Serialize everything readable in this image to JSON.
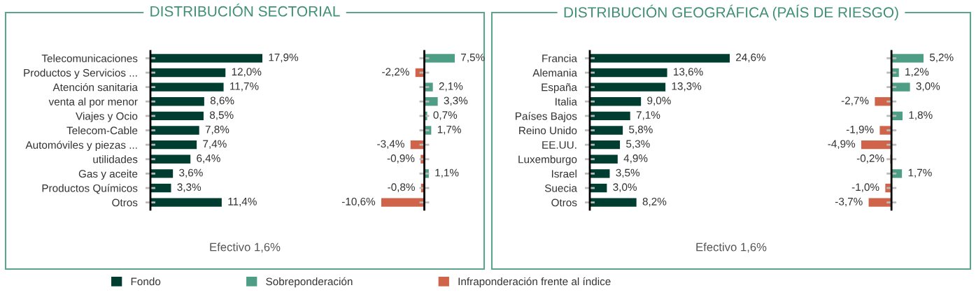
{
  "chart_data": [
    {
      "type": "bar",
      "orientation": "horizontal",
      "title": "DISTRIBUCIÓN SECTORIAL",
      "tick_labels": "y",
      "legend": "bottom",
      "annotations": [
        "Efectivo 1,6%"
      ],
      "categories": [
        "Telecomunicaciones",
        "Productos y Servicios ...",
        "Atención sanitaria",
        "venta al por menor",
        "Viajes y Ocio",
        "Telecom-Cable",
        "Automóviles y piezas ...",
        "utilidades",
        "Gas y aceite",
        "Productos Químicos",
        "Otros"
      ],
      "series": [
        {
          "name": "Fondo",
          "color": "#003d31",
          "values": [
            17.9,
            12.0,
            11.7,
            8.6,
            8.5,
            7.8,
            7.4,
            6.4,
            3.6,
            3.3,
            11.4
          ],
          "value_labels": [
            "17,9%",
            "12,0%",
            "11,7%",
            "8,6%",
            "8,5%",
            "7,8%",
            "7,4%",
            "6,4%",
            "3,6%",
            "3,3%",
            "11,4%"
          ]
        }
      ]
    },
    {
      "type": "bar",
      "orientation": "horizontal",
      "stacked": true,
      "tick_labels": false,
      "legend": "bottom",
      "categories": [
        null,
        null,
        null,
        null,
        null,
        null,
        null,
        null,
        null,
        null,
        null
      ],
      "series": [
        {
          "name": "Sobreponderación",
          "color": "#4e9e86",
          "values": [
            7.5,
            null,
            2.1,
            3.3,
            0.7,
            1.7,
            null,
            null,
            1.1,
            null,
            null
          ],
          "value_labels": [
            "7,5%",
            null,
            "2,1%",
            "3,3%",
            "0,7%",
            "1,7%",
            null,
            null,
            "1,1%",
            null,
            null
          ]
        },
        {
          "name": "Infraponderación frente al índice",
          "color": "#d0644b",
          "values": [
            null,
            -2.2,
            null,
            null,
            null,
            null,
            -3.4,
            -0.9,
            null,
            -0.8,
            -10.6
          ],
          "value_labels": [
            null,
            "-2,2%",
            null,
            null,
            null,
            null,
            "-3,4%",
            "-0,9%",
            null,
            "-0,8%",
            "-10,6%"
          ]
        }
      ]
    },
    {
      "type": "bar",
      "orientation": "horizontal",
      "title": "DISTRIBUCIÓN GEOGRÁFICA (PAÍS DE RIESGO)",
      "tick_labels": "y",
      "annotations": [
        "Efectivo 1,6%"
      ],
      "categories": [
        "Francia",
        "Alemania",
        "España",
        "Italia",
        "Países Bajos",
        "Reino Unido",
        "EE.UU.",
        "Luxemburgo",
        "Israel",
        "Suecia",
        "Otros"
      ],
      "series": [
        {
          "color": "#003d31",
          "values": [
            24.6,
            13.6,
            13.3,
            9.0,
            7.1,
            5.8,
            5.3,
            4.9,
            3.5,
            3.0,
            8.2
          ],
          "value_labels": [
            "24,6%",
            "13,6%",
            "13,3%",
            "9,0%",
            "7,1%",
            "5,8%",
            "5,3%",
            "4,9%",
            "3,5%",
            "3,0%",
            "8,2%"
          ]
        }
      ]
    },
    {
      "type": "bar",
      "orientation": "horizontal",
      "stacked": true,
      "tick_labels": false,
      "categories": [
        null,
        null,
        null,
        null,
        null,
        null,
        null,
        null,
        null,
        null,
        null
      ],
      "series": [
        {
          "color": "#4e9e86",
          "values": [
            5.2,
            1.2,
            3.0,
            null,
            1.8,
            null,
            null,
            null,
            1.7,
            null,
            null
          ],
          "value_labels": [
            "5,2%",
            "1,2%",
            "3,0%",
            null,
            "1,8%",
            null,
            null,
            null,
            "1,7%",
            null,
            null
          ]
        },
        {
          "color": "#d0644b",
          "values": [
            null,
            null,
            null,
            -2.7,
            null,
            -1.9,
            -4.9,
            -0.2,
            null,
            -1.0,
            -3.7
          ],
          "value_labels": [
            null,
            null,
            null,
            "-2,7%",
            null,
            "-1,9%",
            "-4,9%",
            "-0,2%",
            null,
            "-1,0%",
            "-3,7%"
          ]
        }
      ]
    }
  ]
}
